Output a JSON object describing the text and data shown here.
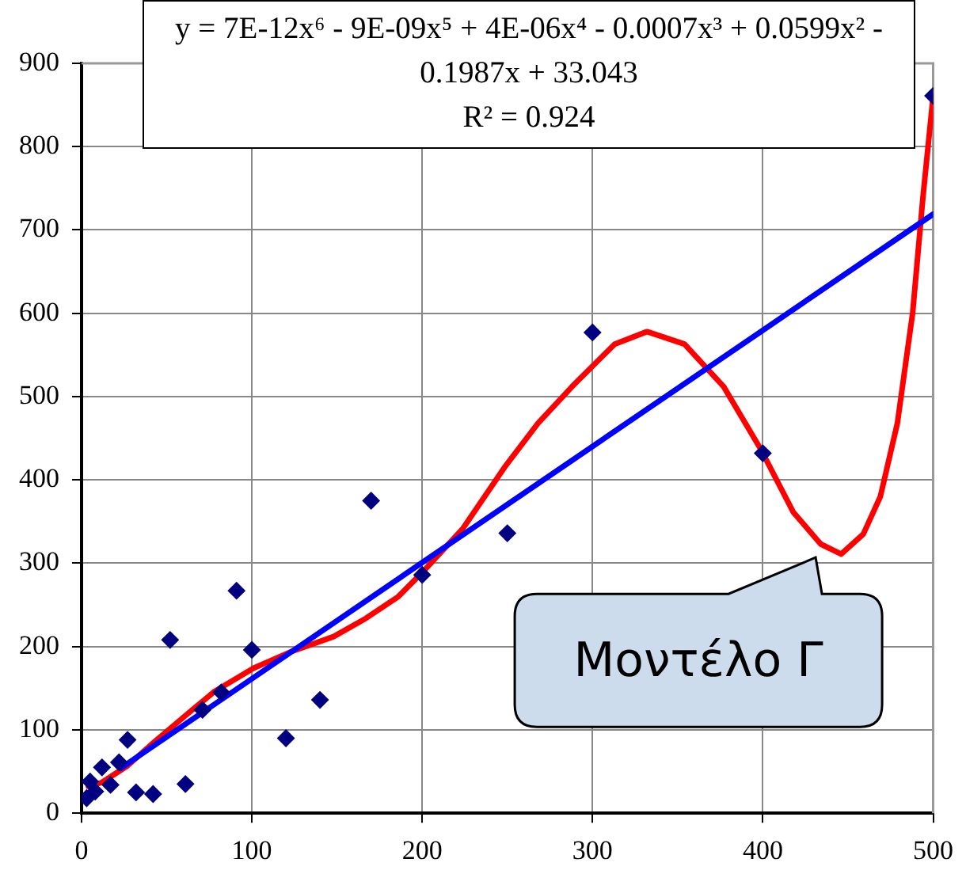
{
  "chart_data": {
    "type": "scatter",
    "xlim": [
      0,
      500
    ],
    "xticks": [
      0,
      100,
      200,
      300,
      400,
      500
    ],
    "ylim": [
      0,
      900
    ],
    "yticks": [
      0,
      100,
      200,
      300,
      400,
      500,
      600,
      700,
      800,
      900
    ],
    "grid": true,
    "legend": false,
    "series": [
      {
        "type": "scatter",
        "marker": "diamond",
        "color": "#000080",
        "x": [
          3,
          5,
          8,
          12,
          17,
          22,
          27,
          32,
          42,
          52,
          61,
          71,
          82,
          91,
          100,
          120,
          140,
          170,
          200,
          250,
          300,
          400,
          500
        ],
        "values": [
          18,
          38,
          26,
          55,
          34,
          61,
          88,
          25,
          23,
          208,
          35,
          124,
          145,
          267,
          196,
          90,
          136,
          375,
          286,
          336,
          577,
          432,
          861
        ]
      },
      {
        "type": "line",
        "marker": "none",
        "color": "#0000ff",
        "x": [
          23,
          500
        ],
        "values": [
          54,
          719
        ]
      },
      {
        "type": "line",
        "marker": "none",
        "color": "#ff0000",
        "x": [
          4,
          12,
          27,
          43,
          65,
          78,
          101,
          122,
          148,
          167,
          186,
          201,
          224,
          249,
          268,
          288,
          313,
          332,
          354,
          377,
          399,
          418,
          434,
          446,
          459,
          469,
          479,
          488,
          494,
          500
        ],
        "values": [
          32,
          37,
          57,
          86,
          124,
          146,
          174,
          193,
          212,
          234,
          260,
          291,
          342,
          417,
          468,
          512,
          563,
          578,
          563,
          512,
          436,
          361,
          323,
          311,
          335,
          380,
          468,
          601,
          739,
          861
        ]
      }
    ],
    "annotations": [
      "y = 7E-12x⁶ - 9E-09x⁵ + 4E-06x⁴ - 0.0007x³ + 0.0599x² - 0.1987x + 33.043\nR² = 0.924",
      "Μοντέλο Γ"
    ]
  }
}
